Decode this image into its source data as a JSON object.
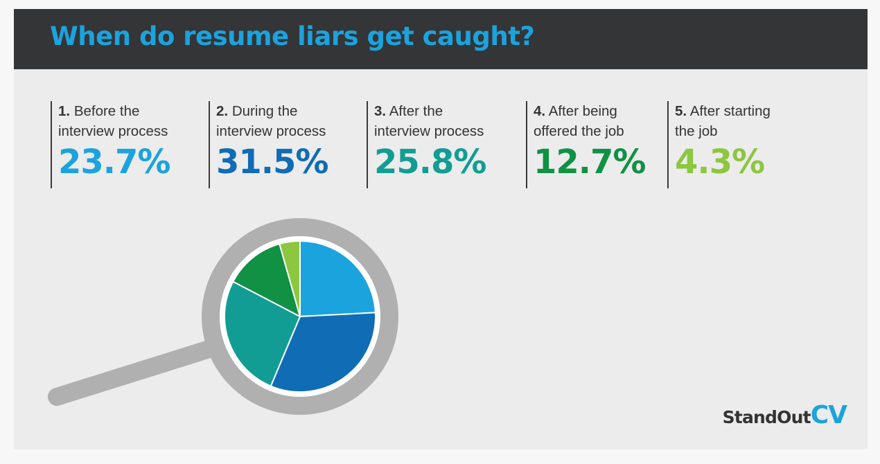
{
  "header": {
    "title": "When do resume liars get caught?"
  },
  "chart_data": {
    "type": "pie",
    "title": "When do resume liars get caught?",
    "unit": "%",
    "slices": [
      {
        "number": "1.",
        "line1": "Before the",
        "line2": "interview process",
        "value": 23.7,
        "display": "23.7%",
        "color": "#1ba3de"
      },
      {
        "number": "2.",
        "line1": "During the",
        "line2": "interview process",
        "value": 31.5,
        "display": "31.5%",
        "color": "#0f6cb5"
      },
      {
        "number": "3.",
        "line1": "After the",
        "line2": "interview process",
        "value": 25.8,
        "display": "25.8%",
        "color": "#119d94"
      },
      {
        "number": "4.",
        "line1": "After being",
        "line2": "offered the job",
        "value": 12.7,
        "display": "12.7%",
        "color": "#109144"
      },
      {
        "number": "5.",
        "line1": "After starting",
        "line2": "the job",
        "value": 4.3,
        "display": "4.3%",
        "color": "#8dc63f"
      }
    ]
  },
  "brand": {
    "name": "StandOut",
    "accent": "CV"
  },
  "colors": {
    "header_background": "#343537",
    "card_background": "#ececec",
    "magnifier": "#b0b0b0",
    "lens": "#ffffff"
  },
  "icons": {
    "magnifier": "magnifying-glass-icon"
  }
}
